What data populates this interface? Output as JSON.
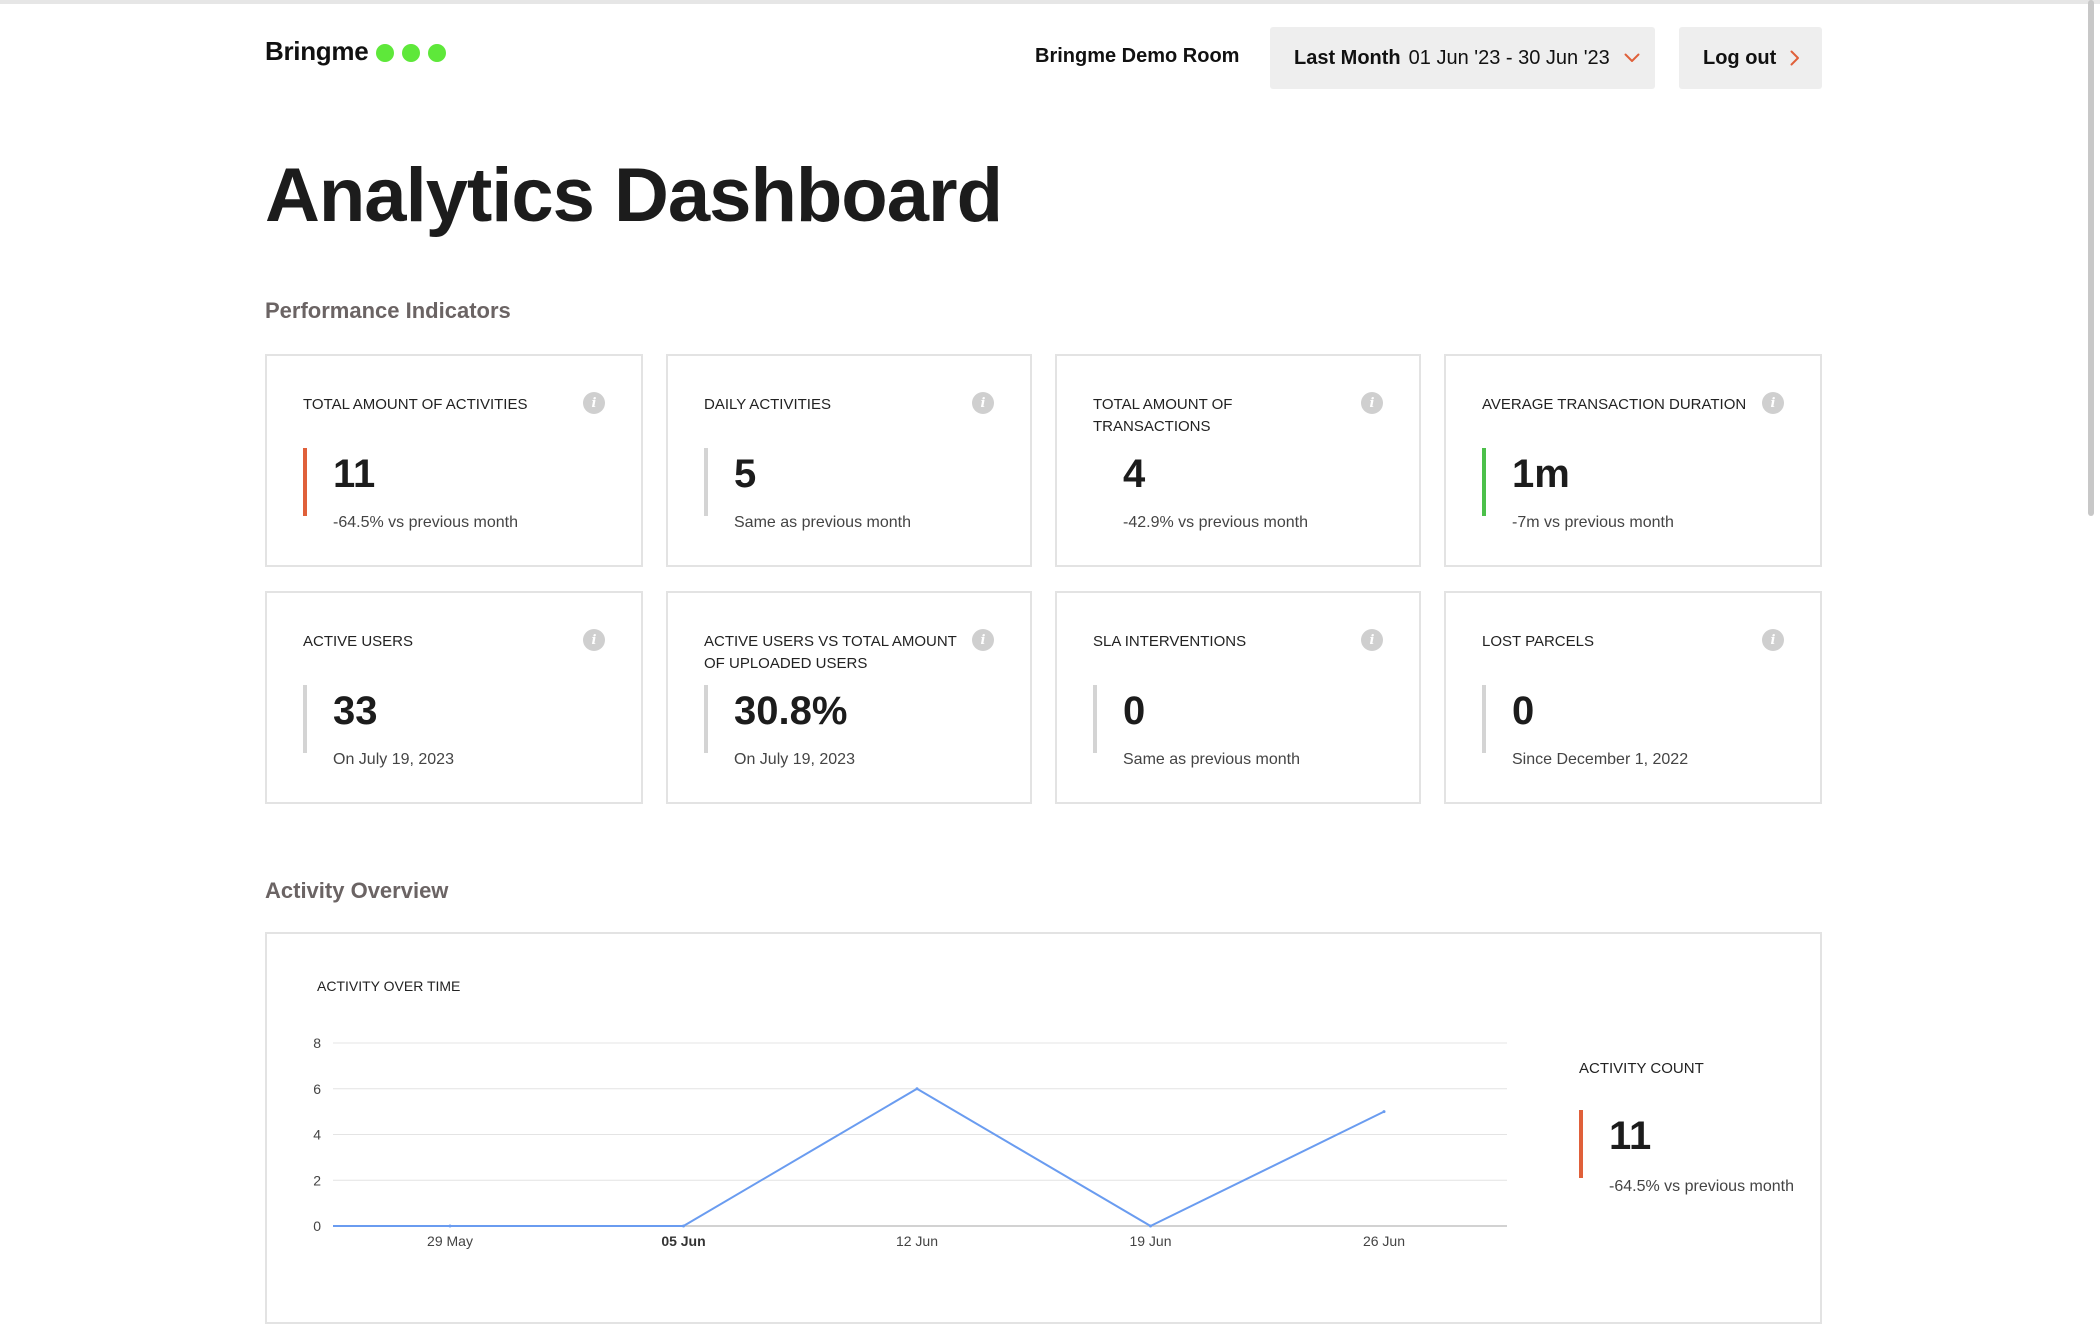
{
  "brand": {
    "name": "Bringme",
    "dot_color": "#5ee83a"
  },
  "header": {
    "room": "Bringme Demo Room",
    "period_label": "Last Month",
    "period_range": "01 Jun '23 - 30 Jun '23",
    "logout_label": "Log out",
    "accent_color": "#e0603a"
  },
  "page_title": "Analytics Dashboard",
  "performance": {
    "section_title": "Performance Indicators",
    "cards": [
      {
        "label": "TOTAL AMOUNT OF ACTIVITIES",
        "value": "11",
        "sub": "-64.5% vs previous month",
        "indicator_color": "#e0603a"
      },
      {
        "label": "DAILY ACTIVITIES",
        "value": "5",
        "sub": "Same as previous month",
        "indicator_color": "#d4d4d4"
      },
      {
        "label": "TOTAL AMOUNT OF TRANSACTIONS",
        "value": "4",
        "sub": "-42.9% vs previous month",
        "indicator_color": ""
      },
      {
        "label": "AVERAGE TRANSACTION DURATION",
        "value": "1m",
        "sub": "-7m vs previous month",
        "indicator_color": "#4cc04a"
      },
      {
        "label": "ACTIVE USERS",
        "value": "33",
        "sub": "On July 19, 2023",
        "indicator_color": "#d4d4d4"
      },
      {
        "label": "ACTIVE USERS VS TOTAL AMOUNT OF UPLOADED USERS",
        "value": "30.8%",
        "sub": "On July 19, 2023",
        "indicator_color": "#d4d4d4"
      },
      {
        "label": "SLA INTERVENTIONS",
        "value": "0",
        "sub": "Same as previous month",
        "indicator_color": "#d4d4d4"
      },
      {
        "label": "LOST PARCELS",
        "value": "0",
        "sub": "Since December 1, 2022",
        "indicator_color": "#d4d4d4"
      }
    ],
    "info_icon": "info-icon"
  },
  "activity": {
    "section_title": "Activity Overview",
    "chart_title": "ACTIVITY OVER TIME",
    "count_label": "ACTIVITY COUNT",
    "count_value": "11",
    "count_sub": "-64.5% vs previous month",
    "count_indicator_color": "#e0603a"
  },
  "chart_data": {
    "type": "line",
    "title": "ACTIVITY OVER TIME",
    "xlabel": "",
    "ylabel": "",
    "ylim": [
      0,
      8
    ],
    "yticks": [
      "0",
      "2",
      "4",
      "6",
      "8"
    ],
    "xticks": [
      "29 May",
      "05 Jun",
      "12 Jun",
      "19 Jun",
      "26 Jun"
    ],
    "highlighted_xtick": "05 Jun",
    "x": [
      "29 May",
      "05 Jun",
      "12 Jun",
      "19 Jun",
      "26 Jun"
    ],
    "series": [
      {
        "values": [
          0,
          0,
          6,
          0,
          5
        ],
        "color": "#6a9cf0"
      }
    ],
    "grid": true
  }
}
